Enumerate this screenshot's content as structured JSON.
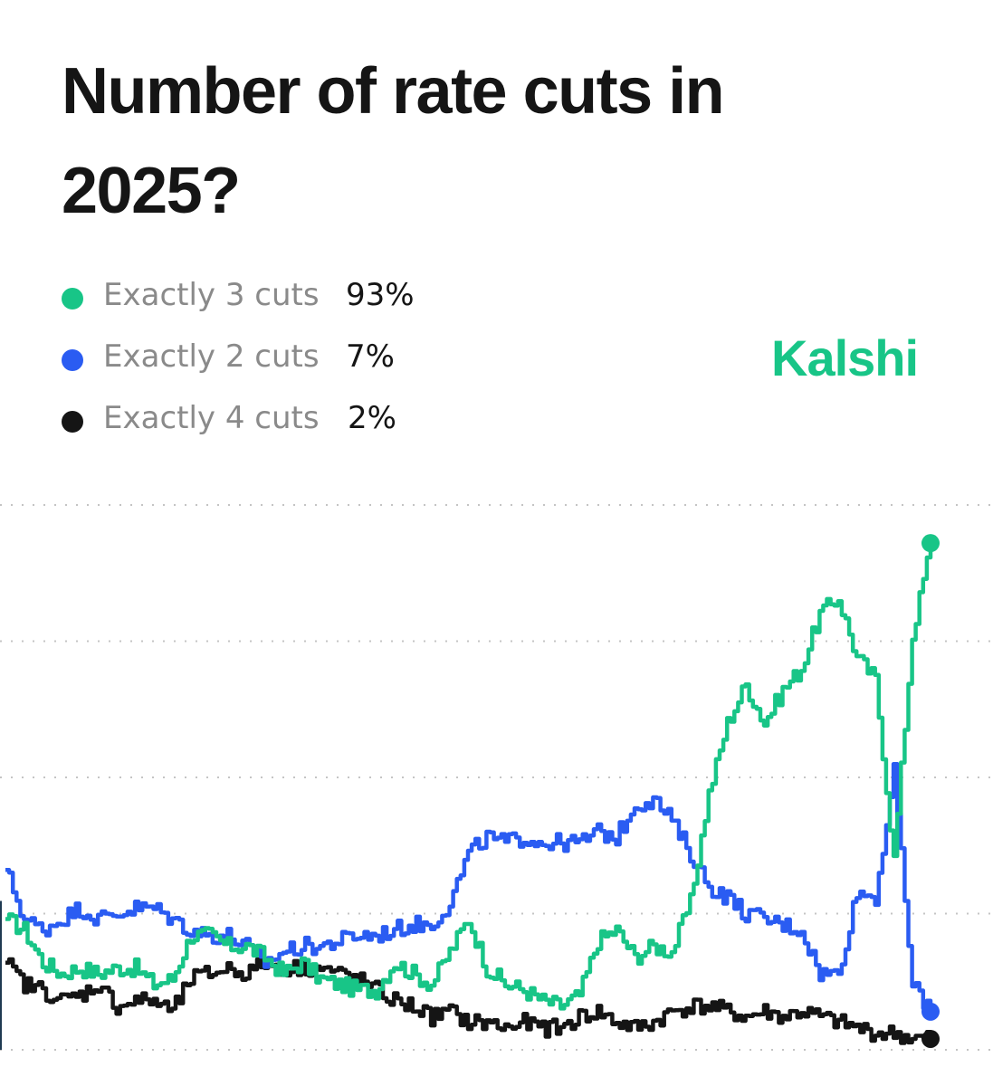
{
  "title": "Number of rate cuts in 2025?",
  "brand": {
    "name": "Kalshi",
    "color": "#18c587"
  },
  "legend": [
    {
      "label": "Exactly 3 cuts",
      "value": "93%",
      "color": "#18c587"
    },
    {
      "label": "Exactly 2 cuts",
      "value": "7%",
      "color": "#2a5cf2"
    },
    {
      "label": "Exactly 4 cuts",
      "value": "2%",
      "color": "#151515"
    }
  ],
  "chart_data": {
    "type": "line",
    "title": "Number of rate cuts in 2025?",
    "xlabel": "",
    "ylabel": "",
    "ylim": [
      0,
      100
    ],
    "grid": true,
    "gridlines": [
      0,
      25,
      50,
      75,
      100
    ],
    "x": [
      0,
      2,
      4,
      6,
      8,
      10,
      12,
      14,
      16,
      18,
      20,
      22,
      24,
      26,
      28,
      30,
      32,
      34,
      36,
      38,
      40,
      42,
      44,
      46,
      48,
      50,
      52,
      54,
      56,
      58,
      60,
      62,
      64,
      66,
      68,
      70,
      72,
      74,
      76,
      78,
      80,
      82,
      84,
      86,
      88,
      90,
      92,
      94,
      96,
      98,
      100
    ],
    "series": [
      {
        "name": "Exactly 3 cuts",
        "color": "#18c587",
        "current": 93,
        "values": [
          24,
          22,
          16,
          14,
          15,
          14,
          15,
          15,
          12,
          13,
          21,
          21,
          19,
          19,
          17,
          14,
          16,
          13,
          12,
          11,
          11,
          16,
          14,
          12,
          18,
          24,
          15,
          12,
          11,
          9,
          8,
          10,
          20,
          22,
          17,
          19,
          18,
          27,
          47,
          60,
          67,
          60,
          66,
          70,
          80,
          83,
          72,
          68,
          35,
          76,
          93
        ]
      },
      {
        "name": "Exactly 2 cuts",
        "color": "#2a5cf2",
        "current": 7,
        "values": [
          33,
          24,
          22,
          24,
          26,
          24,
          25,
          26,
          26,
          24,
          22,
          21,
          21,
          19,
          16,
          18,
          19,
          19,
          20,
          21,
          21,
          22,
          23,
          23,
          27,
          36,
          39,
          38,
          39,
          38,
          38,
          38,
          40,
          39,
          45,
          46,
          42,
          36,
          30,
          28,
          25,
          24,
          23,
          22,
          14,
          14,
          29,
          28,
          51,
          12,
          7
        ]
      },
      {
        "name": "Exactly 4 cuts",
        "color": "#151515",
        "current": 2,
        "values": [
          16,
          12,
          11,
          9,
          10,
          12,
          8,
          9,
          9,
          7,
          13,
          14,
          15,
          14,
          16,
          15,
          15,
          15,
          14,
          13,
          11,
          9,
          8,
          6,
          7,
          5,
          5,
          4,
          5,
          4,
          4,
          6,
          7,
          5,
          4,
          5,
          7,
          8,
          8,
          7,
          6,
          7,
          6,
          7,
          6,
          5,
          4,
          3,
          3,
          2,
          2
        ]
      }
    ]
  }
}
